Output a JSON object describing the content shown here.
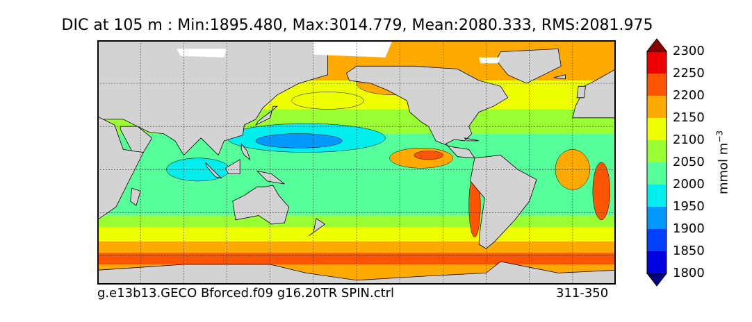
{
  "chart_data": {
    "type": "heatmap",
    "title": "DIC at 105 m : Min:1895.480, Max:3014.779, Mean:2080.333, RMS:2081.975",
    "variable": "DIC",
    "depth": "105 m",
    "stats": {
      "min": 1895.48,
      "max": 3014.779,
      "mean": 2080.333,
      "rms": 2081.975
    },
    "run_label": "g.e13b13.GECO Bforced.f09 g16.20TR SPIN.ctrl",
    "period_label": "311-350",
    "colorbar": {
      "label_base": "mmol m",
      "label_exp": "−3",
      "levels": [
        1750,
        1800,
        1850,
        1900,
        1950,
        2000,
        2050,
        2100,
        2150,
        2200,
        2250,
        2300,
        2350
      ],
      "tick_values": [
        1800,
        1850,
        1900,
        1950,
        2000,
        2050,
        2100,
        2150,
        2200,
        2250,
        2300
      ],
      "tick_labels": [
        "1800",
        "1850",
        "1900",
        "1950",
        "2000",
        "2050",
        "2100",
        "2150",
        "2200",
        "2250",
        "2300"
      ],
      "colors": [
        "#00007f",
        "#0000e0",
        "#0040ff",
        "#0099ff",
        "#00eeee",
        "#55ff99",
        "#99ff33",
        "#eeff00",
        "#ffaa00",
        "#ff5500",
        "#ee0000",
        "#880000"
      ],
      "extend": "both"
    },
    "land_color": "#d3d3d3",
    "sea_ice_color": "#ffffff",
    "grid": true,
    "grid_style": "dotted",
    "lon_range": [
      20,
      380
    ],
    "lat_range": [
      -80,
      90
    ],
    "grid_lons": [
      50,
      80,
      110,
      140,
      170,
      200,
      230,
      260,
      290,
      320,
      350
    ],
    "grid_lats": [
      -60,
      -30,
      0,
      30,
      60
    ]
  }
}
